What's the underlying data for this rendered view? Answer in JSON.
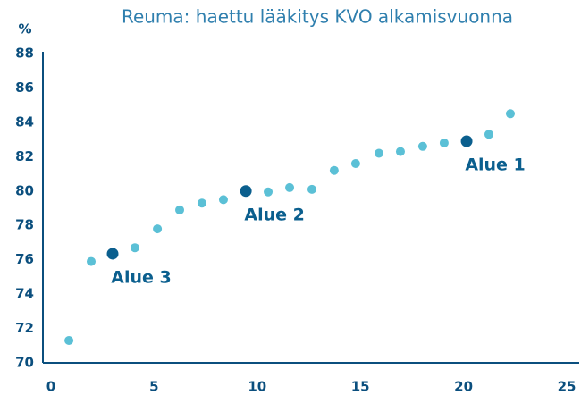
{
  "chart_data": {
    "type": "scatter",
    "title": "Reuma: haettu lääkitys KVO alkamisvuonna",
    "y_label": "%",
    "xlim": [
      0,
      25
    ],
    "xticks": [
      0,
      5,
      10,
      15,
      20,
      25
    ],
    "ylim": [
      70,
      88
    ],
    "yticks": [
      70,
      72,
      74,
      76,
      78,
      80,
      82,
      84,
      86,
      88
    ],
    "grid": false,
    "series": [
      {
        "color": "#5bc0d6",
        "x": [
          0.87,
          1.95,
          4.07,
          5.16,
          6.24,
          7.32,
          8.36,
          10.53,
          11.57,
          12.65,
          13.73,
          14.77,
          15.9,
          16.94,
          18.02,
          19.06,
          21.23,
          22.27
        ],
        "values": [
          71.3,
          75.9,
          76.7,
          77.8,
          78.9,
          79.3,
          79.5,
          79.95,
          80.2,
          80.1,
          81.2,
          81.6,
          82.2,
          82.3,
          82.6,
          82.8,
          83.3,
          84.5
        ]
      },
      {
        "color": "#0b5f8e",
        "x": [
          2.99,
          9.45,
          20.15
        ],
        "values": [
          76.35,
          80.0,
          82.9
        ],
        "point_labels": [
          "Alue 3",
          "Alue 2",
          "Alue 1"
        ]
      }
    ]
  }
}
